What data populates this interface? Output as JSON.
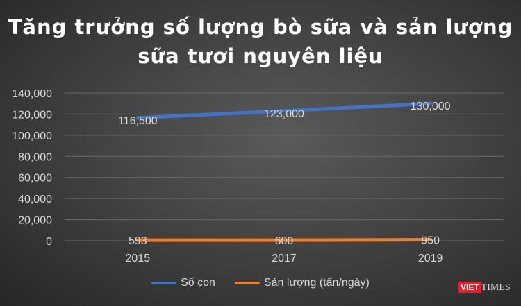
{
  "chart_data": {
    "type": "line",
    "title": "Tăng trưởng số lượng bò sữa và sản lượng sữa tươi nguyên liệu",
    "categories": [
      "2015",
      "2017",
      "2019"
    ],
    "ylim": [
      0,
      140000
    ],
    "yticks": [
      "0",
      "20,000",
      "40,000",
      "60,000",
      "80,000",
      "100,000",
      "120,000",
      "140,000"
    ],
    "grid": true,
    "legend_position": "bottom",
    "series": [
      {
        "name": "Số con",
        "values": [
          116500,
          123000,
          130000
        ],
        "labels": [
          "116,500",
          "123,000",
          "130,000"
        ],
        "color": "#4472c4"
      },
      {
        "name": "Sản lượng (tấn/ngày)",
        "values": [
          593,
          600,
          950
        ],
        "labels": [
          "593",
          "600",
          "950"
        ],
        "color": "#ed7d31"
      }
    ]
  },
  "watermark": {
    "brand_red": "VIET",
    "brand": "TIMES"
  }
}
